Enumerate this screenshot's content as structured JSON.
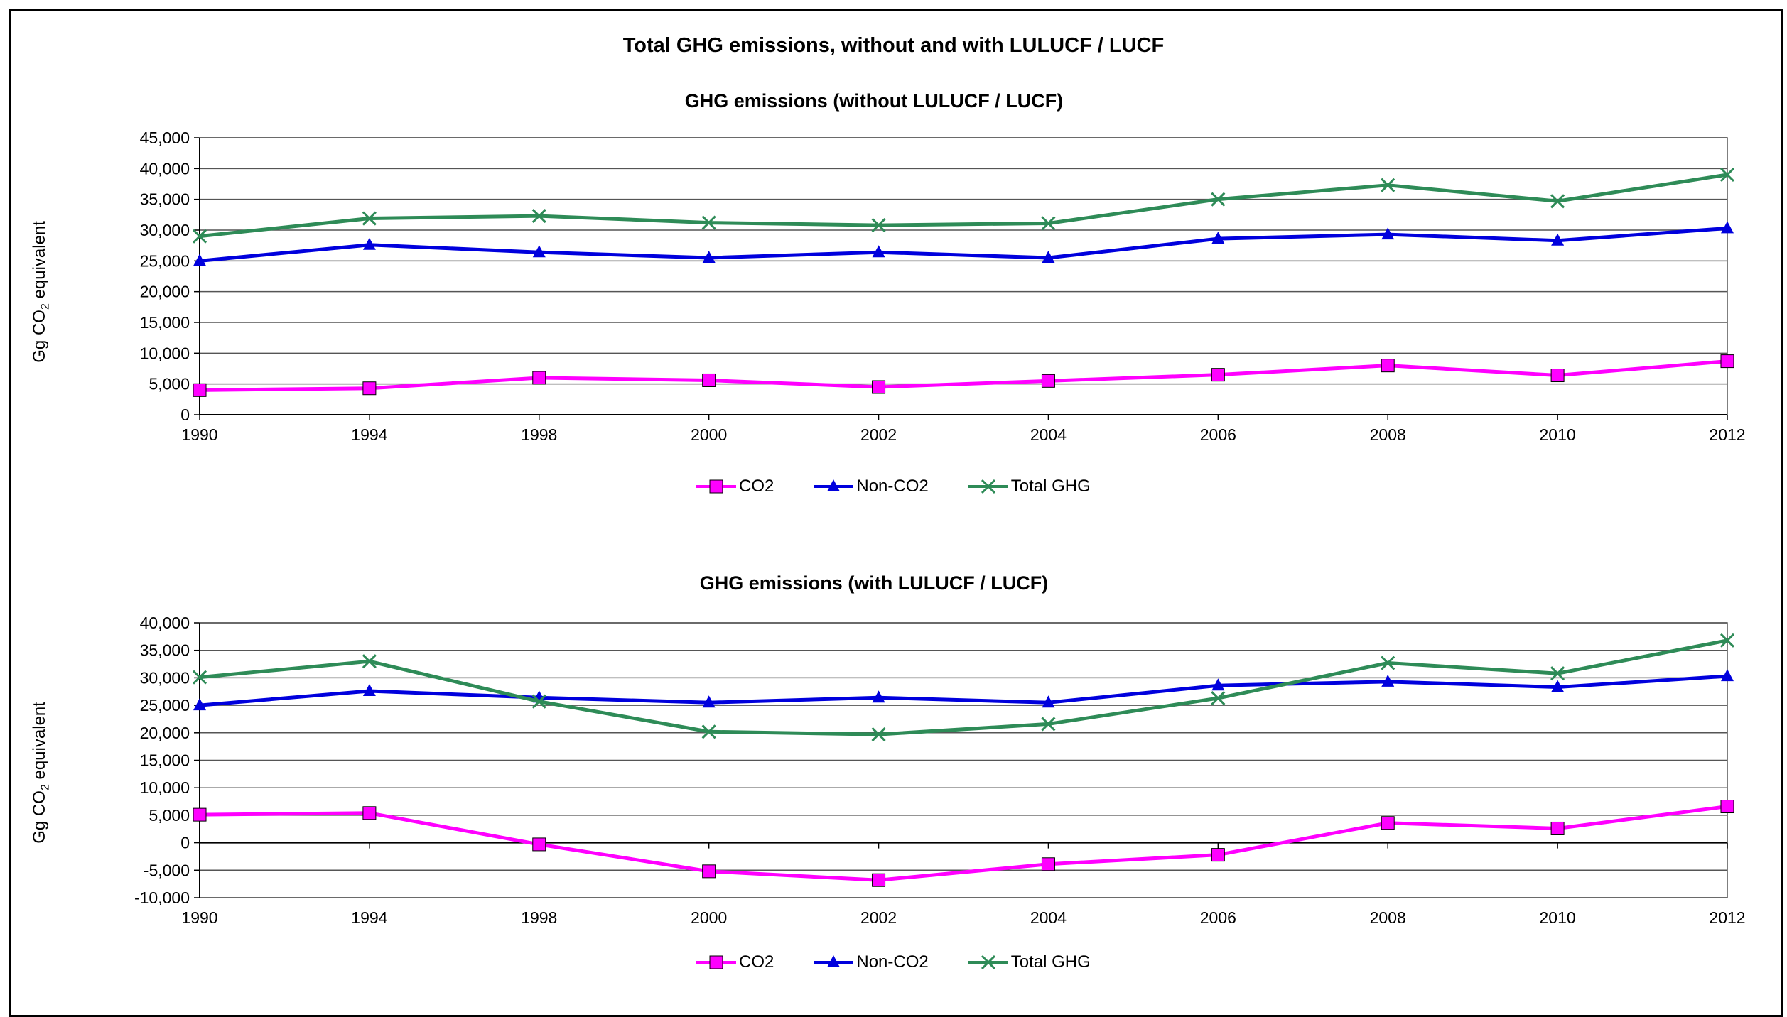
{
  "title": "Total GHG emissions, without and with LULUCF / LUCF",
  "colors": {
    "CO2": "#ff00ff",
    "Non-CO2": "#0000dd",
    "Total GHG": "#2e8b57"
  },
  "chart_data": [
    {
      "type": "line",
      "title": "GHG emissions (without LULUCF / LUCF)",
      "ylabel_main": "Gg CO",
      "ylabel_sub": "2",
      "ylabel_rest": " equivalent",
      "categories": [
        "1990",
        "1994",
        "1998",
        "2000",
        "2002",
        "2004",
        "2006",
        "2008",
        "2010",
        "2012"
      ],
      "ylim": [
        0,
        45000
      ],
      "yticks": [
        0,
        5000,
        10000,
        15000,
        20000,
        25000,
        30000,
        35000,
        40000,
        45000
      ],
      "ytick_labels": [
        "0",
        "5,000",
        "10,000",
        "15,000",
        "20,000",
        "25,000",
        "30,000",
        "35,000",
        "40,000",
        "45,000"
      ],
      "grid": true,
      "legend_position": "bottom",
      "series": [
        {
          "name": "CO2",
          "marker": "square",
          "color": "#ff00ff",
          "values": [
            4000,
            4300,
            6000,
            5600,
            4500,
            5500,
            6500,
            8000,
            6400,
            8700
          ]
        },
        {
          "name": "Non-CO2",
          "marker": "triangle",
          "color": "#0000dd",
          "values": [
            25000,
            27600,
            26400,
            25500,
            26400,
            25500,
            28600,
            29300,
            28300,
            30300
          ]
        },
        {
          "name": "Total GHG",
          "marker": "x",
          "color": "#2e8b57",
          "values": [
            29000,
            31900,
            32300,
            31200,
            30800,
            31100,
            35000,
            37300,
            34700,
            39000
          ]
        }
      ]
    },
    {
      "type": "line",
      "title": "GHG emissions (with LULUCF / LUCF)",
      "ylabel_main": "Gg CO",
      "ylabel_sub": "2",
      "ylabel_rest": " equivalent",
      "categories": [
        "1990",
        "1994",
        "1998",
        "2000",
        "2002",
        "2004",
        "2006",
        "2008",
        "2010",
        "2012"
      ],
      "ylim": [
        -10000,
        40000
      ],
      "yticks": [
        -10000,
        -5000,
        0,
        5000,
        10000,
        15000,
        20000,
        25000,
        30000,
        35000,
        40000
      ],
      "ytick_labels": [
        "-10,000",
        "-5,000",
        "0",
        "5,000",
        "10,000",
        "15,000",
        "20,000",
        "25,000",
        "30,000",
        "35,000",
        "40,000"
      ],
      "grid": true,
      "legend_position": "bottom",
      "series": [
        {
          "name": "CO2",
          "marker": "square",
          "color": "#ff00ff",
          "values": [
            5100,
            5400,
            -300,
            -5200,
            -6800,
            -3900,
            -2200,
            3600,
            2600,
            6600
          ]
        },
        {
          "name": "Non-CO2",
          "marker": "triangle",
          "color": "#0000dd",
          "values": [
            25000,
            27600,
            26400,
            25500,
            26400,
            25500,
            28600,
            29300,
            28300,
            30300
          ]
        },
        {
          "name": "Total GHG",
          "marker": "x",
          "color": "#2e8b57",
          "values": [
            30100,
            33000,
            25700,
            20200,
            19700,
            21600,
            26300,
            32700,
            30800,
            36800
          ]
        }
      ]
    }
  ]
}
